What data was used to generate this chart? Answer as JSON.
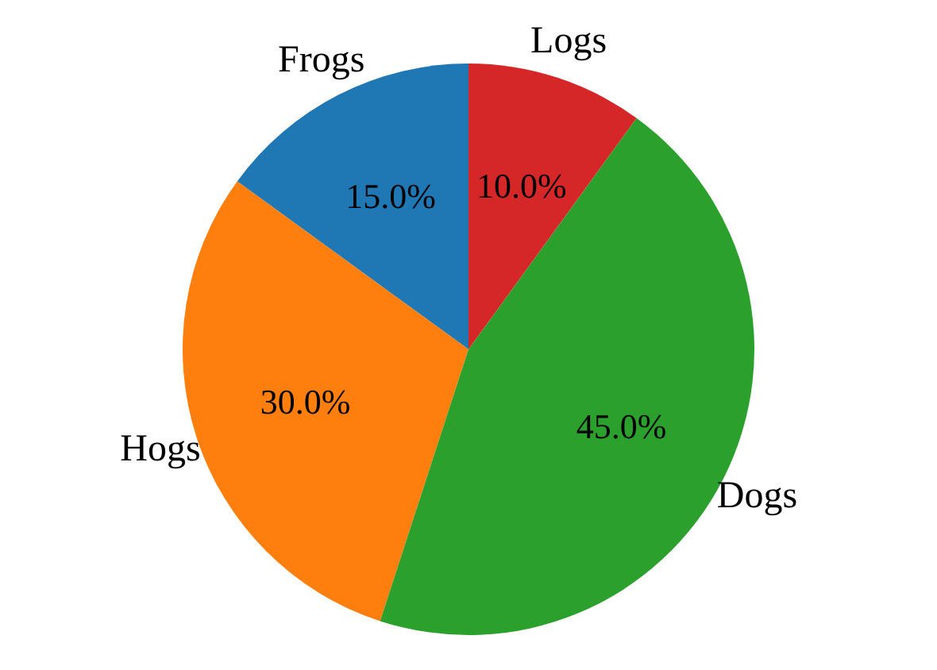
{
  "chart_data": {
    "type": "pie",
    "categories": [
      "Frogs",
      "Hogs",
      "Dogs",
      "Logs"
    ],
    "values": [
      15,
      30,
      45,
      10
    ],
    "colors": [
      "#1f77b4",
      "#ff7f0e",
      "#2ca02c",
      "#d62728"
    ],
    "value_labels": [
      "15.0%",
      "30.0%",
      "45.0%",
      "10.0%"
    ]
  }
}
